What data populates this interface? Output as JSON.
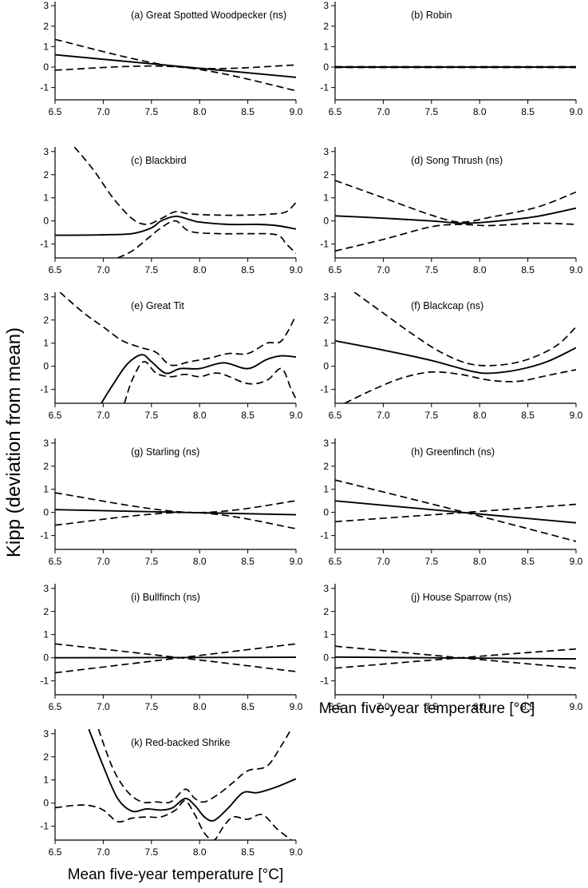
{
  "figure": {
    "ylabel": "Kipp (deviation from mean)",
    "xlabel": "Mean five-year temperature [°C]"
  },
  "chart_data": [
    {
      "type": "line",
      "title": "(a) Great Spotted Woodpecker (ns)",
      "xlim": [
        6.5,
        9.0
      ],
      "ylim": [
        -1.6,
        3.2
      ],
      "xticks": [
        "6.5",
        "7.0",
        "7.5",
        "8.0",
        "8.5",
        "9.0"
      ],
      "yticks": [
        "-1",
        "0",
        "1",
        "2",
        "3"
      ],
      "series": [
        {
          "name": "fit",
          "style": "solid",
          "x": [
            6.5,
            9.0
          ],
          "y": [
            0.6,
            -0.5
          ]
        },
        {
          "name": "upper",
          "style": "dashed",
          "x": [
            6.5,
            7.8,
            9.0
          ],
          "y": [
            1.35,
            0.0,
            0.1
          ]
        },
        {
          "name": "lower",
          "style": "dashed",
          "x": [
            6.5,
            7.8,
            9.0
          ],
          "y": [
            -0.15,
            0.0,
            -1.15
          ]
        }
      ]
    },
    {
      "type": "line",
      "title": "(b) Robin",
      "xlim": [
        6.5,
        9.0
      ],
      "ylim": [
        -1.6,
        3.2
      ],
      "xticks": [
        "6.5",
        "7.0",
        "7.5",
        "8.0",
        "8.5",
        "9.0"
      ],
      "yticks": [
        "-1",
        "0",
        "1",
        "2",
        "3"
      ],
      "series": [
        {
          "name": "fit",
          "style": "solid",
          "x": [
            6.5,
            9.0
          ],
          "y": [
            0.0,
            0.0
          ]
        },
        {
          "name": "upper",
          "style": "dashed",
          "x": [
            6.5,
            9.0
          ],
          "y": [
            0.02,
            0.02
          ]
        },
        {
          "name": "lower",
          "style": "dashed",
          "x": [
            6.5,
            9.0
          ],
          "y": [
            -0.02,
            -0.02
          ]
        }
      ]
    },
    {
      "type": "line",
      "title": "(c) Blackbird",
      "xlim": [
        6.5,
        9.0
      ],
      "ylim": [
        -1.6,
        3.2
      ],
      "xticks": [
        "6.5",
        "7.0",
        "7.5",
        "8.0",
        "8.5",
        "9.0"
      ],
      "yticks": [
        "-1",
        "0",
        "1",
        "2",
        "3"
      ],
      "series": [
        {
          "name": "fit",
          "style": "solid",
          "x": [
            6.5,
            7.0,
            7.3,
            7.5,
            7.6,
            7.75,
            7.9,
            8.0,
            8.3,
            8.6,
            8.8,
            9.0
          ],
          "y": [
            -0.62,
            -0.6,
            -0.55,
            -0.3,
            0.0,
            0.2,
            0.05,
            -0.05,
            -0.15,
            -0.15,
            -0.2,
            -0.35
          ]
        },
        {
          "name": "upper",
          "style": "dashed",
          "x": [
            6.7,
            6.9,
            7.1,
            7.3,
            7.45,
            7.6,
            7.75,
            7.9,
            8.2,
            8.5,
            8.75,
            8.9,
            9.0
          ],
          "y": [
            3.2,
            2.2,
            1.0,
            0.1,
            -0.15,
            0.1,
            0.4,
            0.3,
            0.25,
            0.25,
            0.3,
            0.4,
            0.8
          ]
        },
        {
          "name": "lower",
          "style": "dashed",
          "x": [
            7.15,
            7.3,
            7.45,
            7.6,
            7.75,
            7.9,
            8.2,
            8.5,
            8.8,
            8.9,
            9.0
          ],
          "y": [
            -1.6,
            -1.3,
            -0.8,
            -0.3,
            0.0,
            -0.45,
            -0.55,
            -0.55,
            -0.6,
            -1.0,
            -1.4
          ]
        }
      ]
    },
    {
      "type": "line",
      "title": "(d) Song Thrush (ns)",
      "xlim": [
        6.5,
        9.0
      ],
      "ylim": [
        -1.6,
        3.2
      ],
      "xticks": [
        "6.5",
        "7.0",
        "7.5",
        "8.0",
        "8.5",
        "9.0"
      ],
      "yticks": [
        "-1",
        "0",
        "1",
        "2",
        "3"
      ],
      "series": [
        {
          "name": "fit",
          "style": "solid",
          "x": [
            6.5,
            7.0,
            7.5,
            7.85,
            8.2,
            8.6,
            9.0
          ],
          "y": [
            0.22,
            0.12,
            0.0,
            -0.1,
            0.0,
            0.2,
            0.55
          ]
        },
        {
          "name": "upper",
          "style": "dashed",
          "x": [
            6.5,
            7.0,
            7.5,
            7.8,
            8.1,
            8.6,
            9.0
          ],
          "y": [
            1.75,
            1.0,
            0.25,
            -0.05,
            0.15,
            0.6,
            1.25
          ]
        },
        {
          "name": "lower",
          "style": "dashed",
          "x": [
            6.5,
            7.0,
            7.5,
            7.8,
            8.1,
            8.6,
            9.0
          ],
          "y": [
            -1.3,
            -0.8,
            -0.25,
            -0.15,
            -0.2,
            -0.1,
            -0.15
          ]
        }
      ]
    },
    {
      "type": "line",
      "title": "(e) Great Tit",
      "xlim": [
        6.5,
        9.0
      ],
      "ylim": [
        -1.6,
        3.2
      ],
      "xticks": [
        "6.5",
        "7.0",
        "7.5",
        "8.0",
        "8.5",
        "9.0"
      ],
      "yticks": [
        "-1",
        "0",
        "1",
        "2",
        "3"
      ],
      "series": [
        {
          "name": "fit",
          "style": "solid",
          "x": [
            6.98,
            7.1,
            7.25,
            7.4,
            7.5,
            7.65,
            7.8,
            8.0,
            8.25,
            8.5,
            8.7,
            8.85,
            9.0
          ],
          "y": [
            -1.6,
            -0.8,
            0.1,
            0.5,
            0.2,
            -0.3,
            -0.1,
            -0.1,
            0.15,
            -0.1,
            0.3,
            0.45,
            0.4
          ]
        },
        {
          "name": "upper",
          "style": "dashed",
          "x": [
            6.55,
            6.8,
            7.0,
            7.2,
            7.4,
            7.55,
            7.7,
            7.9,
            8.1,
            8.3,
            8.5,
            8.7,
            8.85,
            9.0
          ],
          "y": [
            3.2,
            2.3,
            1.7,
            1.1,
            0.8,
            0.6,
            0.05,
            0.2,
            0.35,
            0.55,
            0.55,
            1.0,
            1.1,
            2.2
          ]
        },
        {
          "name": "lower",
          "style": "dashed",
          "x": [
            7.22,
            7.3,
            7.42,
            7.55,
            7.7,
            7.85,
            8.0,
            8.2,
            8.5,
            8.7,
            8.85,
            8.95,
            9.0
          ],
          "y": [
            -1.6,
            -0.6,
            0.2,
            -0.3,
            -0.45,
            -0.35,
            -0.45,
            -0.3,
            -0.75,
            -0.6,
            -0.1,
            -1.0,
            -1.4
          ]
        }
      ]
    },
    {
      "type": "line",
      "title": "(f) Blackcap (ns)",
      "xlim": [
        6.5,
        9.0
      ],
      "ylim": [
        -1.6,
        3.2
      ],
      "xticks": [
        "6.5",
        "7.0",
        "7.5",
        "8.0",
        "8.5",
        "9.0"
      ],
      "yticks": [
        "-1",
        "0",
        "1",
        "2",
        "3"
      ],
      "series": [
        {
          "name": "fit",
          "style": "solid",
          "x": [
            6.5,
            7.0,
            7.5,
            7.9,
            8.1,
            8.4,
            8.7,
            9.0
          ],
          "y": [
            1.1,
            0.7,
            0.25,
            -0.2,
            -0.3,
            -0.15,
            0.2,
            0.8
          ]
        },
        {
          "name": "upper",
          "style": "dashed",
          "x": [
            6.7,
            7.0,
            7.3,
            7.6,
            7.9,
            8.2,
            8.5,
            8.8,
            9.0
          ],
          "y": [
            3.2,
            2.3,
            1.4,
            0.6,
            0.1,
            0.05,
            0.3,
            0.9,
            1.7
          ]
        },
        {
          "name": "lower",
          "style": "dashed",
          "x": [
            6.6,
            6.9,
            7.2,
            7.5,
            7.8,
            8.1,
            8.4,
            8.7,
            9.0
          ],
          "y": [
            -1.6,
            -1.0,
            -0.5,
            -0.25,
            -0.35,
            -0.6,
            -0.65,
            -0.4,
            -0.15
          ]
        }
      ]
    },
    {
      "type": "line",
      "title": "(g) Starling (ns)",
      "xlim": [
        6.5,
        9.0
      ],
      "ylim": [
        -1.6,
        3.2
      ],
      "xticks": [
        "6.5",
        "7.0",
        "7.5",
        "8.0",
        "8.5",
        "9.0"
      ],
      "yticks": [
        "-1",
        "0",
        "1",
        "2",
        "3"
      ],
      "series": [
        {
          "name": "fit",
          "style": "solid",
          "x": [
            6.5,
            9.0
          ],
          "y": [
            0.12,
            -0.1
          ]
        },
        {
          "name": "upper",
          "style": "dashed",
          "x": [
            6.5,
            7.9,
            9.0
          ],
          "y": [
            0.85,
            0.0,
            0.5
          ]
        },
        {
          "name": "lower",
          "style": "dashed",
          "x": [
            6.5,
            7.9,
            9.0
          ],
          "y": [
            -0.55,
            0.0,
            -0.7
          ]
        }
      ]
    },
    {
      "type": "line",
      "title": "(h) Greenfinch (ns)",
      "xlim": [
        6.5,
        9.0
      ],
      "ylim": [
        -1.6,
        3.2
      ],
      "xticks": [
        "6.5",
        "7.0",
        "7.5",
        "8.0",
        "8.5",
        "9.0"
      ],
      "yticks": [
        "-1",
        "0",
        "1",
        "2",
        "3"
      ],
      "series": [
        {
          "name": "fit",
          "style": "solid",
          "x": [
            6.5,
            9.0
          ],
          "y": [
            0.5,
            -0.45
          ]
        },
        {
          "name": "upper",
          "style": "dashed",
          "x": [
            6.5,
            7.85,
            9.0
          ],
          "y": [
            1.4,
            0.0,
            -1.25
          ]
        },
        {
          "name": "lower",
          "style": "dashed",
          "x": [
            6.5,
            7.85,
            9.0
          ],
          "y": [
            -0.4,
            0.0,
            0.35
          ]
        }
      ]
    },
    {
      "type": "line",
      "title": "(i) Bullfinch (ns)",
      "xlim": [
        6.5,
        9.0
      ],
      "ylim": [
        -1.6,
        3.2
      ],
      "xticks": [
        "6.5",
        "7.0",
        "7.5",
        "8.0",
        "8.5",
        "9.0"
      ],
      "yticks": [
        "-1",
        "0",
        "1",
        "2",
        "3"
      ],
      "series": [
        {
          "name": "fit",
          "style": "solid",
          "x": [
            6.5,
            9.0
          ],
          "y": [
            0.0,
            0.02
          ]
        },
        {
          "name": "upper",
          "style": "dashed",
          "x": [
            6.5,
            7.8,
            9.0
          ],
          "y": [
            0.6,
            0.0,
            -0.6
          ]
        },
        {
          "name": "lower",
          "style": "dashed",
          "x": [
            6.5,
            7.8,
            9.0
          ],
          "y": [
            -0.65,
            0.0,
            0.6
          ]
        }
      ]
    },
    {
      "type": "line",
      "title": "(j) House Sparrow (ns)",
      "xlim": [
        6.5,
        9.0
      ],
      "ylim": [
        -1.6,
        3.2
      ],
      "xticks": [
        "6.5",
        "7.0",
        "7.5",
        "8.0",
        "8.5",
        "9.0"
      ],
      "yticks": [
        "-1",
        "0",
        "1",
        "2",
        "3"
      ],
      "series": [
        {
          "name": "fit",
          "style": "solid",
          "x": [
            6.5,
            9.0
          ],
          "y": [
            0.03,
            -0.05
          ]
        },
        {
          "name": "upper",
          "style": "dashed",
          "x": [
            6.5,
            7.8,
            9.0
          ],
          "y": [
            0.5,
            0.0,
            -0.45
          ]
        },
        {
          "name": "lower",
          "style": "dashed",
          "x": [
            6.5,
            7.8,
            9.0
          ],
          "y": [
            -0.45,
            0.0,
            0.38
          ]
        }
      ]
    },
    {
      "type": "line",
      "title": "(k) Red-backed Shrike",
      "xlim": [
        6.5,
        9.0
      ],
      "ylim": [
        -1.6,
        3.2
      ],
      "xticks": [
        "6.5",
        "7.0",
        "7.5",
        "8.0",
        "8.5",
        "9.0"
      ],
      "yticks": [
        "-1",
        "0",
        "1",
        "2",
        "3"
      ],
      "series": [
        {
          "name": "fit",
          "style": "solid",
          "x": [
            6.85,
            7.0,
            7.15,
            7.3,
            7.45,
            7.6,
            7.72,
            7.85,
            7.95,
            8.05,
            8.15,
            8.3,
            8.45,
            8.6,
            8.8,
            9.0
          ],
          "y": [
            3.2,
            1.6,
            0.2,
            -0.35,
            -0.25,
            -0.3,
            -0.2,
            0.2,
            -0.1,
            -0.6,
            -0.75,
            -0.2,
            0.45,
            0.45,
            0.7,
            1.05
          ]
        },
        {
          "name": "upper",
          "style": "dashed",
          "x": [
            6.95,
            7.1,
            7.25,
            7.4,
            7.55,
            7.7,
            7.85,
            7.95,
            8.05,
            8.2,
            8.35,
            8.5,
            8.7,
            8.85,
            8.95
          ],
          "y": [
            3.2,
            1.5,
            0.5,
            0.05,
            0.05,
            0.05,
            0.6,
            0.2,
            0.05,
            0.4,
            0.9,
            1.4,
            1.6,
            2.5,
            3.2
          ]
        },
        {
          "name": "lower",
          "style": "dashed",
          "x": [
            6.5,
            6.7,
            6.85,
            7.0,
            7.15,
            7.3,
            7.45,
            7.6,
            7.75,
            7.85,
            7.95,
            8.05,
            8.15,
            8.25,
            8.35,
            8.5,
            8.65,
            8.8,
            8.95
          ],
          "y": [
            -0.2,
            -0.1,
            -0.1,
            -0.3,
            -0.8,
            -0.65,
            -0.6,
            -0.6,
            -0.3,
            0.1,
            -0.5,
            -1.3,
            -1.6,
            -1.0,
            -0.6,
            -0.7,
            -0.5,
            -1.1,
            -1.6
          ]
        }
      ]
    }
  ]
}
